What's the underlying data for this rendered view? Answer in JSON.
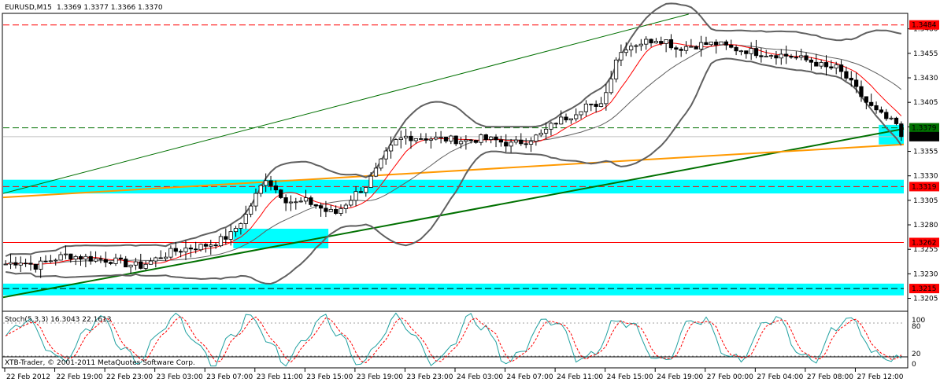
{
  "header": {
    "symbol": "EURUSD,M15",
    "ohlc": "1.3369 1.3377 1.3366 1.3370"
  },
  "indicator": {
    "label": "Stoch(5,3,3) 16.3043 22.1613",
    "levels": [
      "80",
      "20"
    ],
    "scale_top": "100",
    "scale_bottom": "0"
  },
  "copyright": "XTB-Trader, © 2001-2011 MetaQuotes Software Corp.",
  "colors": {
    "background": "#ffffff",
    "candles": "#000000",
    "bollinger": "#808080",
    "moving_average": "#ff0000",
    "trend_main": "#007000",
    "trend_orange": "#ff9900",
    "zones": "#00ffff",
    "resistance_red": "#ff0000",
    "stoch_main": "#20a0a0",
    "stoch_signal": "#ff0000"
  },
  "chart_data": {
    "type": "candlestick",
    "title": "EURUSD,M15",
    "y_ticks": [
      "1.3480",
      "1.3455",
      "1.3430",
      "1.3405",
      "1.3380",
      "1.3355",
      "1.3330",
      "1.3305",
      "1.3280",
      "1.3255",
      "1.3230",
      "1.3205"
    ],
    "ylim": [
      1.3195,
      1.3495
    ],
    "x_ticks": [
      "22 Feb 2012",
      "22 Feb 19:00",
      "22 Feb 23:00",
      "23 Feb 03:00",
      "23 Feb 07:00",
      "23 Feb 11:00",
      "23 Feb 15:00",
      "23 Feb 19:00",
      "23 Feb 23:00",
      "24 Feb 03:00",
      "24 Feb 07:00",
      "24 Feb 11:00",
      "24 Feb 15:00",
      "24 Feb 19:00",
      "27 Feb 00:00",
      "27 Feb 04:00",
      "27 Feb 08:00",
      "27 Feb 12:00"
    ],
    "price_path": [
      [
        0,
        1.324
      ],
      [
        3,
        1.3243
      ],
      [
        6,
        1.3238
      ],
      [
        9,
        1.3244
      ],
      [
        12,
        1.3249
      ],
      [
        15,
        1.3247
      ],
      [
        18,
        1.3245
      ],
      [
        21,
        1.3244
      ],
      [
        24,
        1.324
      ],
      [
        27,
        1.3238
      ],
      [
        30,
        1.3245
      ],
      [
        33,
        1.3252
      ],
      [
        36,
        1.3256
      ],
      [
        39,
        1.3258
      ],
      [
        42,
        1.3262
      ],
      [
        45,
        1.327
      ],
      [
        48,
        1.329
      ],
      [
        50,
        1.331
      ],
      [
        52,
        1.3328
      ],
      [
        54,
        1.3316
      ],
      [
        56,
        1.3306
      ],
      [
        58,
        1.3302
      ],
      [
        60,
        1.3304
      ],
      [
        62,
        1.33
      ],
      [
        64,
        1.3294
      ],
      [
        66,
        1.3292
      ],
      [
        68,
        1.3302
      ],
      [
        70,
        1.3312
      ],
      [
        72,
        1.332
      ],
      [
        74,
        1.3335
      ],
      [
        76,
        1.3352
      ],
      [
        78,
        1.3365
      ],
      [
        80,
        1.337
      ],
      [
        83,
        1.3369
      ],
      [
        86,
        1.3368
      ],
      [
        89,
        1.3367
      ],
      [
        92,
        1.3366
      ],
      [
        95,
        1.3368
      ],
      [
        98,
        1.3366
      ],
      [
        101,
        1.3362
      ],
      [
        104,
        1.3366
      ],
      [
        107,
        1.3372
      ],
      [
        110,
        1.3385
      ],
      [
        113,
        1.3392
      ],
      [
        116,
        1.3403
      ],
      [
        118,
        1.3398
      ],
      [
        120,
        1.3415
      ],
      [
        122,
        1.345
      ],
      [
        124,
        1.3462
      ],
      [
        126,
        1.3465
      ],
      [
        128,
        1.3467
      ],
      [
        130,
        1.347
      ],
      [
        132,
        1.3468
      ],
      [
        134,
        1.346
      ],
      [
        136,
        1.3462
      ],
      [
        139,
        1.3464
      ],
      [
        142,
        1.3465
      ],
      [
        145,
        1.346
      ],
      [
        148,
        1.3458
      ],
      [
        151,
        1.3455
      ],
      [
        154,
        1.3454
      ],
      [
        157,
        1.3452
      ],
      [
        160,
        1.3448
      ],
      [
        162,
        1.3445
      ],
      [
        164,
        1.344
      ],
      [
        166,
        1.344
      ],
      [
        168,
        1.343
      ],
      [
        170,
        1.3418
      ],
      [
        172,
        1.3405
      ],
      [
        174,
        1.3395
      ],
      [
        176,
        1.3388
      ],
      [
        178,
        1.3382
      ],
      [
        179,
        1.337
      ]
    ],
    "n_bars": 180,
    "stochastic": {
      "k": 16.3043,
      "d": 22.1613,
      "levels": [
        80,
        20
      ]
    },
    "horizontal_levels": [
      {
        "price": 1.3484,
        "label": "1.3484",
        "style": "red-dashed"
      },
      {
        "price": 1.3379,
        "label": "1.3379",
        "style": "green-dashed"
      },
      {
        "price": 1.337,
        "label": "1.3370",
        "style": "current-price"
      },
      {
        "price": 1.3319,
        "label": "1.3319",
        "style": "red-dashed"
      },
      {
        "price": 1.3262,
        "label": "1.3262",
        "style": "red-solid"
      },
      {
        "price": 1.3215,
        "label": "1.3215",
        "style": "black-dashed"
      }
    ],
    "zones": [
      {
        "from_bar": 0,
        "to_bar": 180,
        "low": 1.3312,
        "high": 1.3326
      },
      {
        "from_bar": 0,
        "to_bar": 180,
        "low": 1.3208,
        "high": 1.322
      },
      {
        "from_bar": 46,
        "to_bar": 65,
        "low": 1.3256,
        "high": 1.3276
      },
      {
        "from_bar": 175,
        "to_bar": 180,
        "low": 1.3362,
        "high": 1.3382
      }
    ],
    "trendlines": [
      {
        "from": [
          0,
          1.3206
        ],
        "to": [
          180,
          1.3378
        ],
        "color": "trend_main",
        "width": 2
      },
      {
        "from": [
          0,
          1.3308
        ],
        "to": [
          180,
          1.3362
        ],
        "color": "trend_orange",
        "width": 2
      },
      {
        "from": [
          0,
          1.3312
        ],
        "to": [
          137,
          1.3495
        ],
        "color": "trend_main",
        "width": 1
      }
    ]
  }
}
